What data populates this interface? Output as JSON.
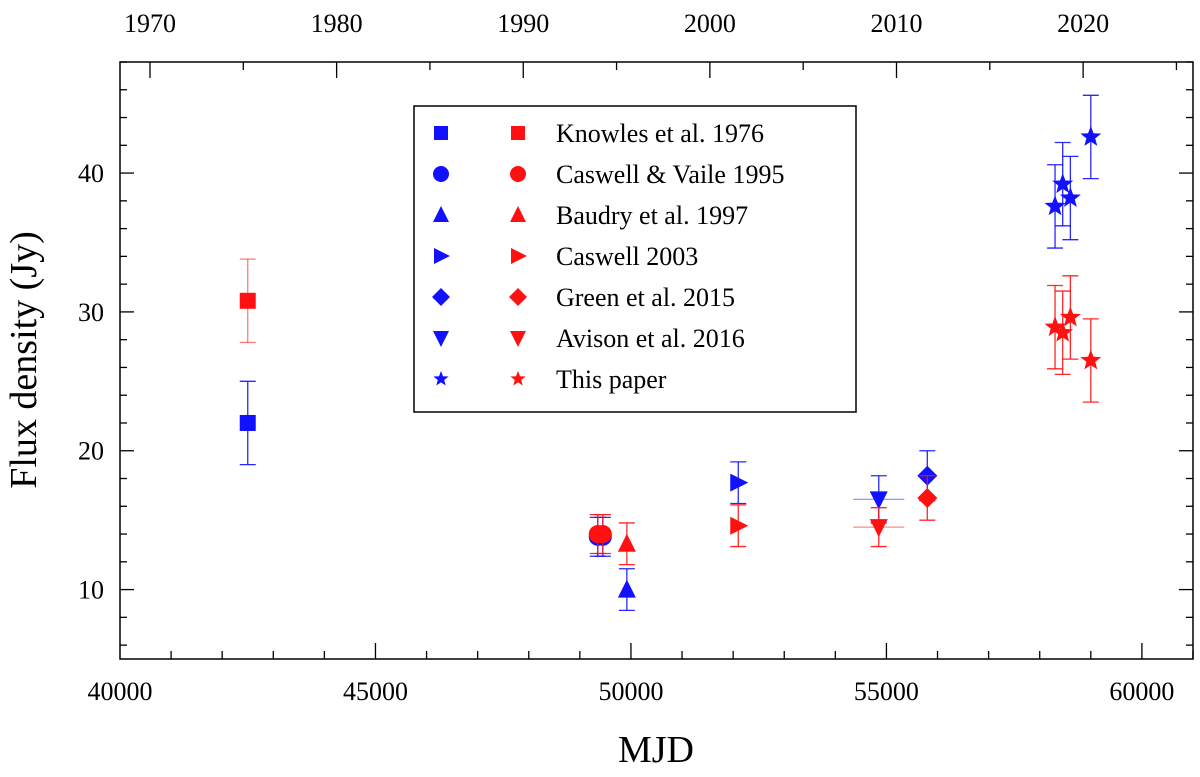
{
  "chart_data": {
    "type": "scatter",
    "xlabel": "MJD",
    "ylabel": "Flux density (Jy)",
    "xlim": [
      40000,
      61000
    ],
    "ylim": [
      5,
      48
    ],
    "xticks": [
      40000,
      45000,
      50000,
      55000,
      60000
    ],
    "xtick_labels": [
      "40000",
      "45000",
      "50000",
      "55000",
      "60000"
    ],
    "yticks": [
      10,
      20,
      30,
      40
    ],
    "ytick_labels": [
      "10",
      "20",
      "30",
      "40"
    ],
    "top_axis": {
      "ticks": [
        1970,
        1980,
        1990,
        2000,
        2010,
        2020
      ],
      "tick_labels": [
        "1970",
        "1980",
        "1990",
        "2000",
        "2010",
        "2020"
      ]
    },
    "legend_placement": "top-center",
    "colors": {
      "blue": "#1111ff",
      "red": "#ff1111"
    },
    "series": [
      {
        "name": "Knowles et al. 1976",
        "marker": "square",
        "blue": [
          {
            "x": 42500,
            "y": 22.0,
            "yerr": 3.0
          }
        ],
        "red": [
          {
            "x": 42500,
            "y": 30.8,
            "yerr": 3.0
          }
        ]
      },
      {
        "name": "Caswell & Vaile 1995",
        "marker": "circle",
        "blue": [
          {
            "x": 49350,
            "y": 13.8,
            "yerr": 1.4
          },
          {
            "x": 49450,
            "y": 13.8,
            "yerr": 1.4
          }
        ],
        "red": [
          {
            "x": 49350,
            "y": 14.0,
            "yerr": 1.4
          },
          {
            "x": 49450,
            "y": 14.0,
            "yerr": 1.4
          }
        ]
      },
      {
        "name": "Baudry et al. 1997",
        "marker": "triangle-up",
        "blue": [
          {
            "x": 49920,
            "y": 10.0,
            "yerr": 1.5
          }
        ],
        "red": [
          {
            "x": 49920,
            "y": 13.3,
            "yerr": 1.5
          }
        ]
      },
      {
        "name": "Caswell 2003",
        "marker": "triangle-right",
        "blue": [
          {
            "x": 52100,
            "y": 17.7,
            "yerr": 1.5
          }
        ],
        "red": [
          {
            "x": 52100,
            "y": 14.6,
            "yerr": 1.5
          }
        ]
      },
      {
        "name": "Green et al. 2015",
        "marker": "diamond",
        "blue": [
          {
            "x": 55800,
            "y": 18.2,
            "yerr": 1.8
          }
        ],
        "red": [
          {
            "x": 55800,
            "y": 16.6,
            "yerr": 1.6
          }
        ]
      },
      {
        "name": "Avison et al. 2016",
        "marker": "triangle-down",
        "blue": [
          {
            "x": 54850,
            "y": 16.5,
            "yerr": 1.7,
            "xerr": 500
          }
        ],
        "red": [
          {
            "x": 54850,
            "y": 14.5,
            "yerr": 1.4,
            "xerr": 500
          }
        ]
      },
      {
        "name": "This paper",
        "marker": "star",
        "blue": [
          {
            "x": 58300,
            "y": 37.6,
            "yerr": 3.0
          },
          {
            "x": 58450,
            "y": 39.2,
            "yerr": 3.0
          },
          {
            "x": 58600,
            "y": 38.2,
            "yerr": 3.0
          },
          {
            "x": 59000,
            "y": 42.6,
            "yerr": 3.0
          }
        ],
        "red": [
          {
            "x": 58300,
            "y": 28.9,
            "yerr": 3.0
          },
          {
            "x": 58450,
            "y": 28.5,
            "yerr": 3.0
          },
          {
            "x": 58600,
            "y": 29.6,
            "yerr": 3.0
          },
          {
            "x": 59000,
            "y": 26.5,
            "yerr": 3.0
          }
        ]
      }
    ]
  }
}
